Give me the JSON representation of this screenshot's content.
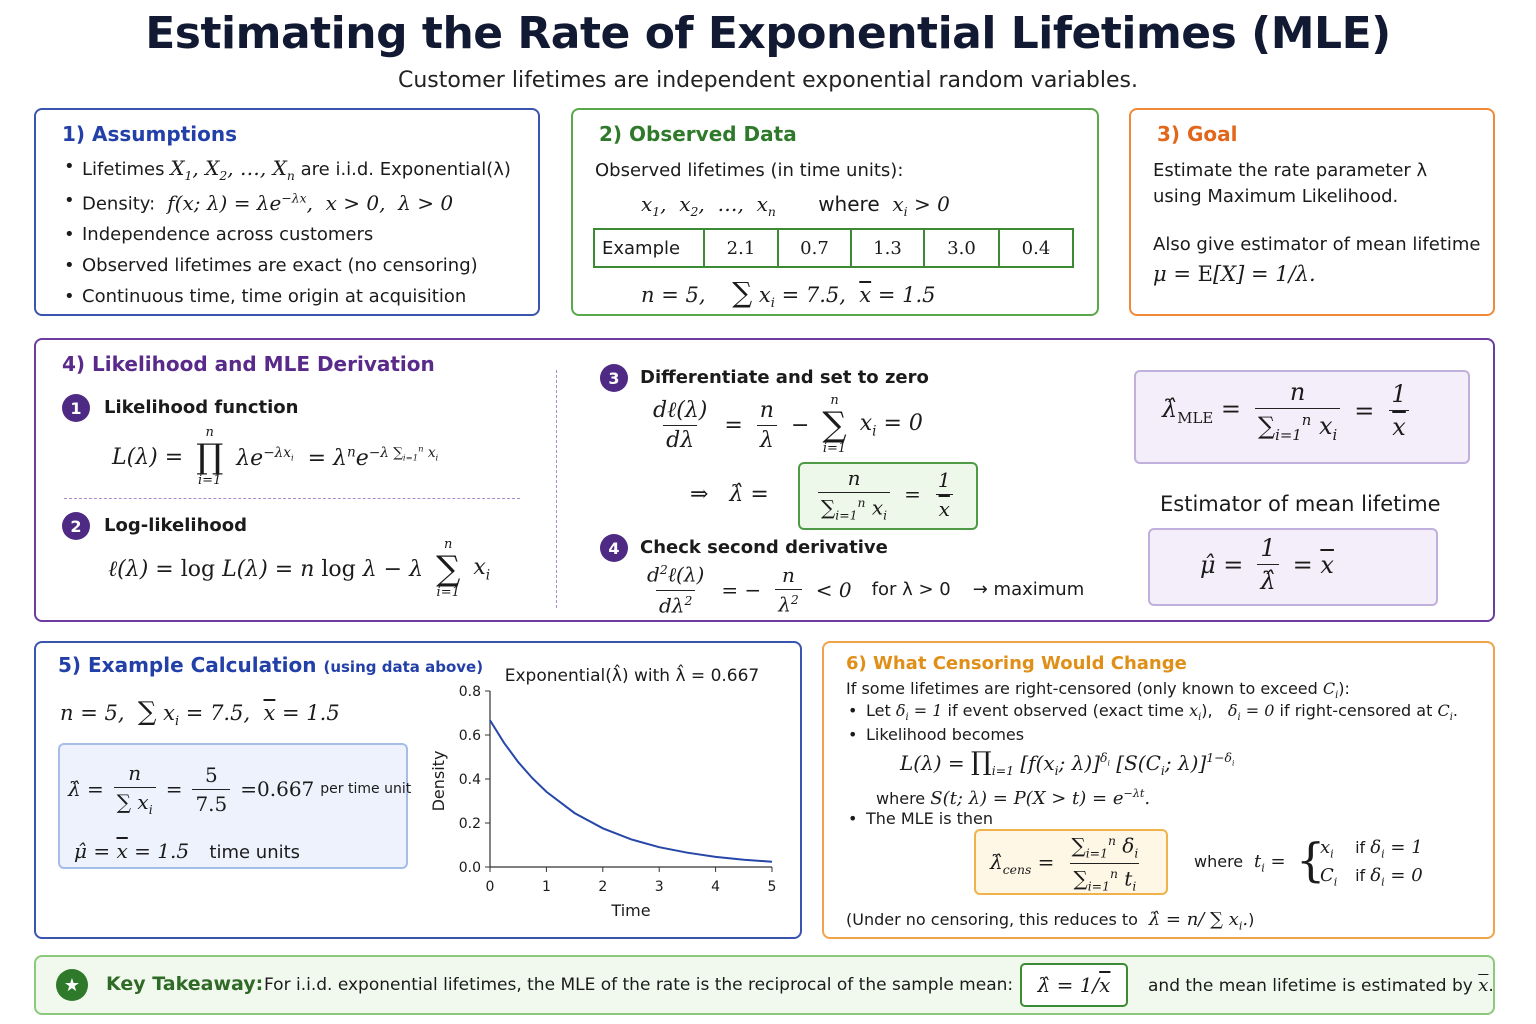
{
  "title": "Estimating the Rate of Exponential Lifetimes (MLE)",
  "subtitle": "Customer lifetimes are independent exponential random variables.",
  "assumptions": {
    "title": "1) Assumptions",
    "b1_pre": "Lifetimes",
    "b1_post": "are i.i.d. Exponential(λ)",
    "b2_pre": "Density:",
    "b3": "Independence across customers",
    "b4": "Observed lifetimes are exact (no censoring)",
    "b5": "Continuous time, time origin at acquisition"
  },
  "observed": {
    "title": "2) Observed Data",
    "intro": "Observed lifetimes (in time units):",
    "where": "where",
    "example_label": "Example",
    "values": [
      "2.1",
      "0.7",
      "1.3",
      "3.0",
      "0.4"
    ]
  },
  "goal": {
    "title": "3) Goal",
    "line1": "Estimate the rate parameter λ",
    "line2": "using Maximum Likelihood.",
    "line3": "Also give estimator of mean lifetime"
  },
  "derivation": {
    "title": "4) Likelihood and MLE Derivation",
    "step1": "Likelihood function",
    "step2": "Log-likelihood",
    "step3": "Differentiate and set to zero",
    "step4": "Check second derivative",
    "for_lambda": "for λ > 0",
    "arrow_max": "→  maximum",
    "mean_est_title": "Estimator of mean lifetime"
  },
  "example": {
    "title": "5) Example Calculation",
    "title_note": "(using data above)",
    "result": "=0.667",
    "per_unit": "per time unit",
    "time_units": "time units"
  },
  "chart_data": {
    "type": "line",
    "title": "Exponential(λ̂) with λ̂ = 0.667",
    "xlabel": "Time",
    "ylabel": "Density",
    "xlim": [
      0,
      5
    ],
    "ylim": [
      0,
      0.8
    ],
    "xticks": [
      "0",
      "1",
      "2",
      "3",
      "4",
      "5"
    ],
    "yticks": [
      "0.0",
      "0.2",
      "0.4",
      "0.6",
      "0.8"
    ],
    "lambda": 0.667,
    "series": [
      {
        "x": [
          0,
          0.25,
          0.5,
          0.75,
          1,
          1.5,
          2,
          2.5,
          3,
          3.5,
          4,
          4.5,
          5
        ],
        "y": [
          0.667,
          0.564,
          0.477,
          0.404,
          0.342,
          0.245,
          0.176,
          0.126,
          0.09,
          0.065,
          0.046,
          0.033,
          0.024
        ]
      }
    ],
    "color": "#2747a8"
  },
  "censoring": {
    "title": "6) What Censoring Would Change",
    "intro": "If some lifetimes are right-censored (only known to exceed",
    "let": "Let",
    "if_observed": "if event observed (exact time",
    "if_censored": "if right-censored at",
    "lik_becomes": "Likelihood becomes",
    "where": "where",
    "mle_then": "The MLE is then",
    "where2": "where",
    "if1": "if",
    "note": "(Under no censoring, this reduces to"
  },
  "takeaway": {
    "label": "Key Takeaway:",
    "text": "For i.i.d. exponential lifetimes, the MLE of the rate is the reciprocal of the sample mean:",
    "tail": "and the mean lifetime is estimated by"
  }
}
